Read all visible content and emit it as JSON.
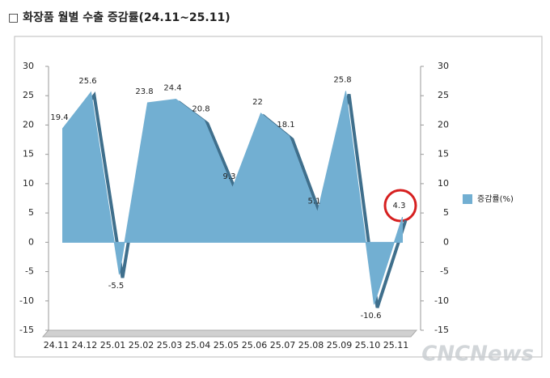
{
  "chart_data": {
    "type": "area",
    "title": "□ 화장품 월별 수출 증감률(24.11~25.11)",
    "categories": [
      "24.11",
      "24.12",
      "25.01",
      "25.02",
      "25.03",
      "25.04",
      "25.05",
      "25.06",
      "25.07",
      "25.08",
      "25.09",
      "25.10",
      "25.11"
    ],
    "series": [
      {
        "name": "증감률(%)",
        "color": "#72afd2",
        "values": [
          19.4,
          25.6,
          -5.5,
          23.8,
          24.4,
          20.8,
          9.3,
          22,
          18.1,
          5.1,
          25.8,
          -10.6,
          4.3
        ]
      }
    ],
    "ylim": [
      -15,
      30
    ],
    "yticks": [
      -15,
      -10,
      -5,
      0,
      5,
      10,
      15,
      20,
      25,
      30
    ],
    "y2lim": [
      -15,
      30
    ],
    "y2ticks": [
      -15,
      -10,
      -5,
      0,
      5,
      10,
      15,
      20,
      25,
      30
    ],
    "legend": "right",
    "watermark": "CNCNews"
  }
}
